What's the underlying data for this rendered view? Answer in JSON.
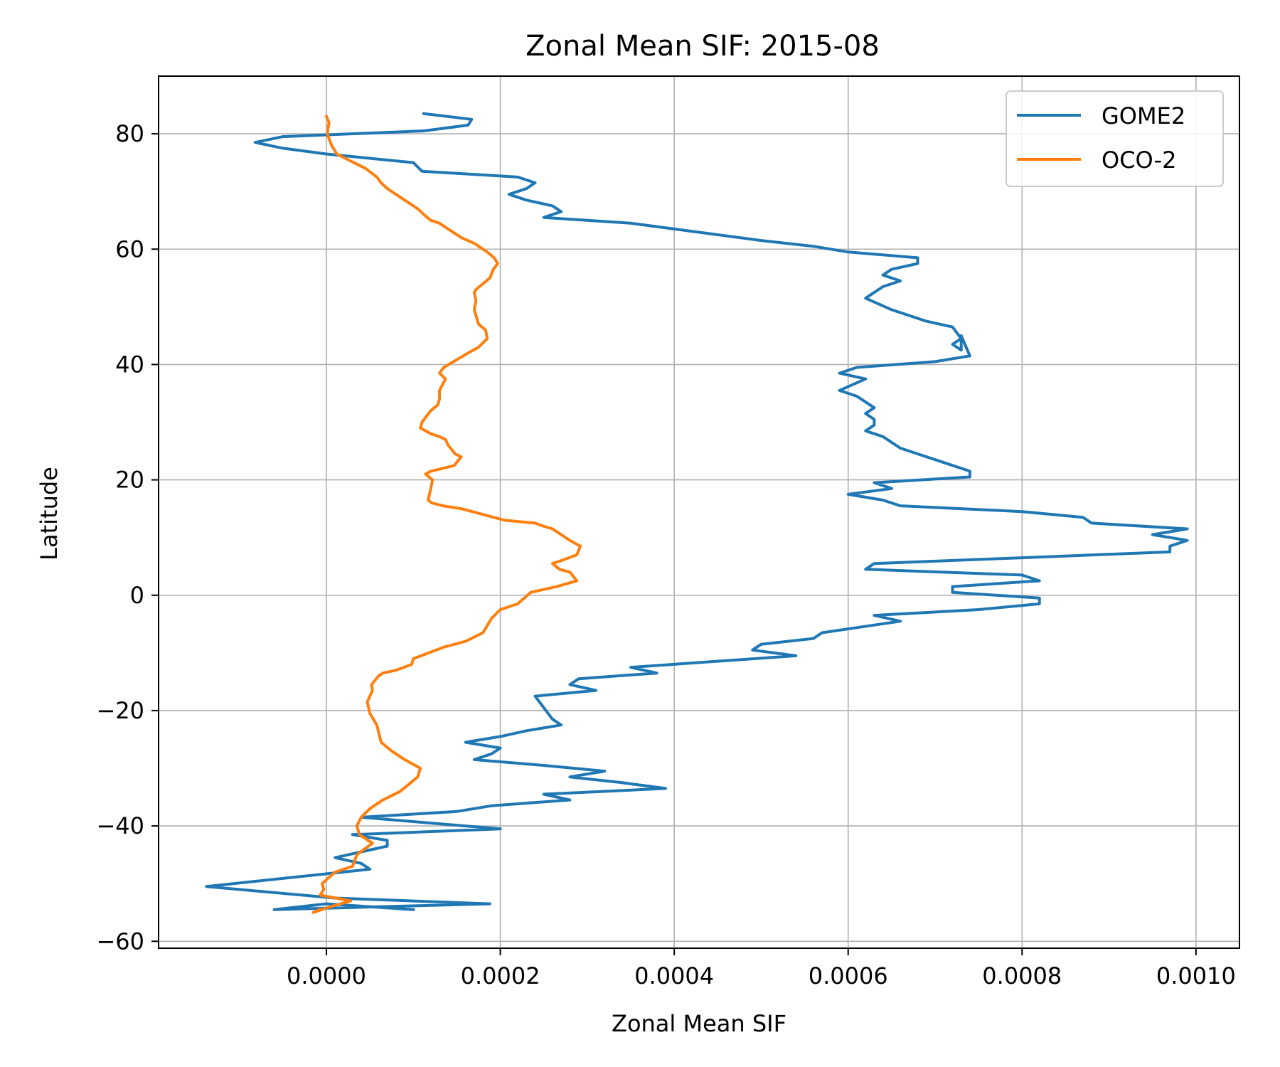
{
  "chart_data": {
    "type": "line",
    "title": "Zonal Mean SIF: 2015-08",
    "xlabel": "Zonal Mean SIF",
    "ylabel": "Latitude",
    "xlim": [
      -0.000193,
      0.00105
    ],
    "ylim": [
      -61.2,
      90
    ],
    "xticks": [
      0.0,
      0.0002,
      0.0004,
      0.0006,
      0.0008,
      0.001
    ],
    "xtick_labels": [
      "0.0000",
      "0.0002",
      "0.0004",
      "0.0006",
      "0.0008",
      "0.0010"
    ],
    "yticks": [
      -60,
      -40,
      -20,
      0,
      20,
      40,
      60,
      80
    ],
    "ytick_labels": [
      "−60",
      "−40",
      "−20",
      "0",
      "20",
      "40",
      "60",
      "80"
    ],
    "grid": true,
    "legend_position": "top-right",
    "series": [
      {
        "name": "GOME2",
        "color": "#1f77b4",
        "x": [
          0.000112,
          0.000167,
          0.000163,
          0.000112,
          -5e-05,
          -8.2e-05,
          -5e-05,
          0.0,
          0.0001,
          0.00011,
          0.00022,
          0.00024,
          0.00023,
          0.00021,
          0.00023,
          0.00026,
          0.00027,
          0.00025,
          0.00035,
          0.0004,
          0.00045,
          0.0005,
          0.00056,
          0.0006,
          0.00068,
          0.00068,
          0.00065,
          0.00064,
          0.00066,
          0.00064,
          0.00062,
          0.00065,
          0.00069,
          0.00072,
          0.00073,
          0.00072,
          0.00073,
          0.00073,
          0.00074,
          0.0007,
          0.00061,
          0.00059,
          0.00062,
          0.00059,
          0.00061,
          0.00062,
          0.00063,
          0.00062,
          0.00063,
          0.00063,
          0.00062,
          0.00064,
          0.00065,
          0.00066,
          0.00068,
          0.0007,
          0.00072,
          0.00074,
          0.00074,
          0.00063,
          0.00065,
          0.0006,
          0.00064,
          0.00066,
          0.0008,
          0.00087,
          0.00088,
          0.00099,
          0.00095,
          0.00099,
          0.00097,
          0.00097,
          0.0008,
          0.00063,
          0.00062,
          0.0008,
          0.00082,
          0.00072,
          0.00072,
          0.00082,
          0.00082,
          0.00075,
          0.00063,
          0.00066,
          0.00057,
          0.00056,
          0.0005,
          0.00049,
          0.00054,
          0.00035,
          0.00038,
          0.00029,
          0.00028,
          0.00031,
          0.00024,
          0.00025,
          0.00026,
          0.00027,
          0.00023,
          0.0002,
          0.00016,
          0.0002,
          0.00019,
          0.00017,
          0.00025,
          0.00032,
          0.00028,
          0.00034,
          0.00039,
          0.00025,
          0.00028,
          0.00019,
          0.00015,
          4e-05,
          0.0002,
          3e-05,
          7e-05,
          7e-05,
          1e-05,
          4e-05,
          5e-05,
          -0.000138,
          1e-05,
          0.000188,
          -6e-05,
          0.0,
          0.0001
        ],
        "y": [
          83.5,
          82.5,
          81.5,
          80.5,
          79.5,
          78.5,
          77.5,
          76.5,
          75.0,
          73.5,
          72.5,
          71.5,
          70.5,
          69.5,
          68.5,
          67.5,
          66.5,
          65.5,
          64.5,
          63.5,
          62.5,
          61.5,
          60.5,
          59.5,
          58.5,
          57.5,
          56.5,
          55.5,
          54.5,
          53.5,
          51.5,
          49.5,
          47.5,
          46.5,
          44.5,
          43.5,
          42.5,
          45.0,
          41.5,
          40.5,
          39.5,
          38.5,
          37.5,
          35.5,
          34.5,
          33.5,
          32.5,
          31.5,
          30.5,
          29.5,
          28.5,
          27.5,
          26.5,
          25.5,
          24.5,
          23.5,
          22.5,
          21.5,
          20.5,
          19.5,
          18.5,
          17.5,
          16.5,
          15.5,
          14.5,
          13.5,
          12.5,
          11.5,
          10.5,
          9.5,
          8.5,
          7.5,
          6.5,
          5.5,
          4.5,
          3.5,
          2.5,
          1.5,
          0.5,
          -0.5,
          -1.5,
          -2.5,
          -3.5,
          -4.5,
          -6.5,
          -7.5,
          -8.5,
          -9.5,
          -10.5,
          -12.5,
          -13.5,
          -14.5,
          -15.5,
          -16.5,
          -17.5,
          -19.5,
          -21.5,
          -22.5,
          -23.5,
          -24.5,
          -25.5,
          -26.5,
          -27.5,
          -28.5,
          -29.5,
          -30.5,
          -31.5,
          -32.5,
          -33.5,
          -34.5,
          -35.5,
          -36.5,
          -37.5,
          -38.5,
          -40.5,
          -41.5,
          -42.5,
          -43.5,
          -45.5,
          -46.5,
          -47.5,
          -50.5,
          -52.5,
          -53.5,
          -54.5,
          -53.5,
          -54.5
        ]
      },
      {
        "name": "OCO-2",
        "color": "#ff7f0e",
        "x": [
          0.0,
          3e-06,
          1e-06,
          6e-06,
          1.2e-05,
          2.5e-05,
          4.5e-05,
          5.8e-05,
          6.3e-05,
          7e-05,
          8.5e-05,
          9.5e-05,
          0.000105,
          0.000112,
          0.00012,
          0.00013,
          0.00014,
          0.000155,
          0.00017,
          0.000185,
          0.000193,
          0.000197,
          0.000192,
          0.000188,
          0.000172,
          0.00017,
          0.000172,
          0.00017,
          0.000175,
          0.000183,
          0.000185,
          0.000175,
          0.000163,
          0.000135,
          0.00013,
          0.000137,
          0.00013,
          0.00013,
          0.000128,
          0.00012,
          0.000115,
          0.00011,
          0.000108,
          0.00012,
          0.00013,
          0.000137,
          0.00014,
          0.000148,
          0.000155,
          0.000147,
          0.000134,
          0.00012,
          0.000114,
          0.000122,
          0.00012,
          0.000117,
          0.000121,
          0.000134,
          0.000155,
          0.00018,
          0.000205,
          0.00024,
          0.000249,
          0.00026,
          0.00027,
          0.00028,
          0.000292,
          0.000288,
          0.00027,
          0.00026,
          0.000268,
          0.00028,
          0.000288,
          0.000265,
          0.000235,
          0.00022,
          0.0002,
          0.00019,
          0.00018,
          0.00016,
          0.000135,
          0.0001,
          9.8e-05,
          8e-05,
          6.5e-05,
          6e-05,
          5.2e-05,
          5.3e-05,
          4.7e-05,
          5e-05,
          5.8e-05,
          6.3e-05,
          7.5e-05,
          9e-05,
          0.000108,
          0.000105,
          9.3e-05,
          8.5e-05,
          6.5e-05,
          5e-05,
          4e-05,
          3.5e-05,
          3.8e-05,
          5.3e-05,
          3.5e-05,
          3e-05,
          1e-05,
          -5e-06,
          -3e-06,
          -7e-06,
          2.8e-05,
          5e-06,
          -1.5e-05,
          -8e-06
        ],
        "y": [
          83.0,
          82.0,
          80.0,
          78.0,
          76.5,
          75.5,
          74.0,
          72.5,
          71.5,
          70.5,
          69.0,
          68.0,
          67.0,
          66.0,
          65.0,
          64.5,
          63.5,
          62.0,
          61.0,
          59.5,
          58.5,
          57.5,
          56.5,
          55.0,
          53.0,
          52.5,
          51.0,
          49.5,
          47.0,
          46.0,
          44.5,
          43.0,
          42.0,
          39.5,
          38.5,
          37.5,
          35.5,
          34.0,
          33.0,
          32.0,
          31.0,
          30.0,
          29.0,
          28.0,
          27.5,
          27.0,
          26.0,
          24.5,
          24.0,
          22.5,
          22.0,
          21.5,
          21.0,
          20.0,
          18.5,
          16.5,
          16.0,
          15.5,
          15.0,
          14.0,
          13.0,
          12.5,
          12.0,
          11.5,
          10.5,
          9.5,
          8.5,
          7.0,
          6.0,
          5.5,
          4.5,
          4.0,
          2.5,
          1.5,
          0.5,
          -1.5,
          -2.5,
          -4.0,
          -6.5,
          -8.0,
          -9.0,
          -11.0,
          -12.0,
          -13.0,
          -13.5,
          -14.0,
          -15.5,
          -16.5,
          -18.5,
          -20.5,
          -22.5,
          -25.5,
          -27.0,
          -28.5,
          -30.0,
          -31.5,
          -33.0,
          -34.0,
          -35.5,
          -37.0,
          -38.5,
          -40.0,
          -41.5,
          -43.0,
          -45.0,
          -47.0,
          -48.0,
          -50.0,
          -51.0,
          -52.0,
          -53.0,
          -54.0,
          -55.0,
          -54.5
        ]
      }
    ]
  }
}
